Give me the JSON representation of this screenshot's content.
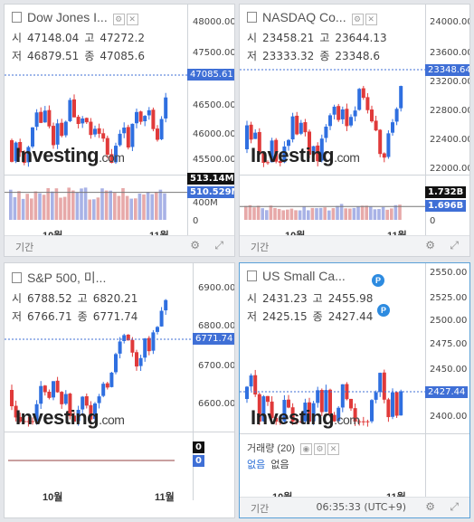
{
  "panels": [
    {
      "name": "Dow Jones I...",
      "open_label": "시",
      "open": "47148.04",
      "high_label": "고",
      "high": "47272.2",
      "low_label": "저",
      "low": "46879.51",
      "close_label": "종",
      "close": "47085.6",
      "yticks": [
        "48000.00",
        "47500.00",
        "47085.61",
        "46500.00",
        "46000.00",
        "45500.00"
      ],
      "price_tag": "47085.61",
      "vol_ticks": [
        "513.14M",
        "510.529M",
        "400M",
        "0"
      ],
      "x_labels": [
        "10월",
        "11월"
      ],
      "footer_label": "기간"
    },
    {
      "name": "NASDAQ Co...",
      "open_label": "시",
      "open": "23458.21",
      "high_label": "고",
      "high": "23644.13",
      "low_label": "저",
      "low": "23333.32",
      "close_label": "종",
      "close": "23348.6",
      "yticks": [
        "24000.00",
        "23600.00",
        "23348.64",
        "23200.00",
        "22800.00",
        "22400.00",
        "22000.00"
      ],
      "price_tag": "23348.64",
      "vol_ticks": [
        "1.732B",
        "1.696B",
        "0"
      ],
      "x_labels": [
        "10월",
        "11월"
      ],
      "footer_label": "기간"
    },
    {
      "name": "S&P 500, 미...",
      "open_label": "시",
      "open": "6788.52",
      "high_label": "고",
      "high": "6820.21",
      "low_label": "저",
      "low": "6766.71",
      "close_label": "종",
      "close": "6771.74",
      "yticks": [
        "6900.00",
        "6800.00",
        "6771.74",
        "6700.00",
        "6600.00"
      ],
      "price_tag": "6771.74",
      "vol_ticks": [
        "0",
        "0"
      ],
      "x_labels": [
        "10월",
        "11월"
      ],
      "footer_label": ""
    },
    {
      "name": "US Small Ca...",
      "open_label": "시",
      "open": "2431.23",
      "high_label": "고",
      "high": "2455.98",
      "low_label": "저",
      "low": "2425.15",
      "close_label": "종",
      "close": "2427.44",
      "yticks": [
        "2550.00",
        "2525.00",
        "2500.00",
        "2475.00",
        "2450.00",
        "2427.44",
        "2400.00"
      ],
      "price_tag": "2427.44",
      "volume_title": "거래량 (20)",
      "volume_none_1": "없음",
      "volume_none_2": "없음",
      "x_labels": [
        "10월",
        "11월"
      ],
      "footer_label": "기간",
      "footer_time": "06:35:33 (UTC+9)",
      "badge": "P"
    }
  ],
  "logo_main": "Investing",
  "logo_suffix": ".com",
  "colors": {
    "up": "#e03a3a",
    "down": "#2f6fe0",
    "bg": "#ffffff",
    "accent": "#5aa1d8"
  }
}
